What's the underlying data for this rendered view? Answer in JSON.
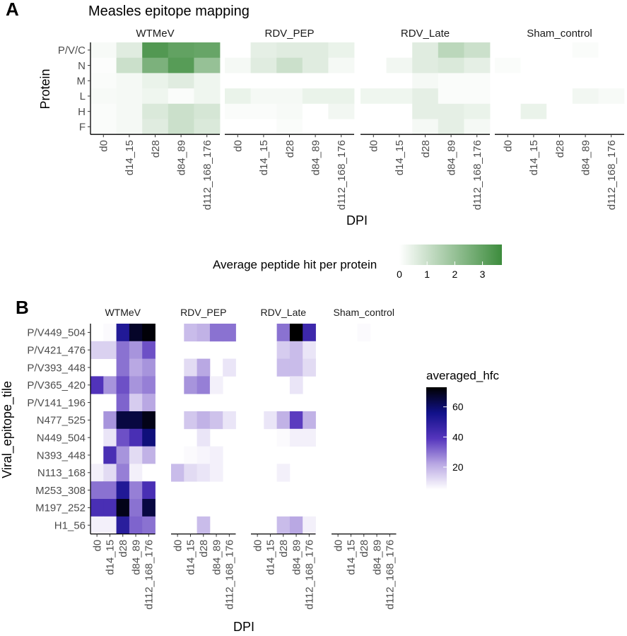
{
  "figure": {
    "panel_a_letter": "A",
    "panel_b_letter": "B"
  },
  "chart_data": [
    {
      "id": "panel_a",
      "type": "heatmap",
      "title": "Measles epitope mapping",
      "xlabel": "DPI",
      "ylabel": "Protein",
      "facets": [
        "WTMeV",
        "RDV_PEP",
        "RDV_Late",
        "Sham_control"
      ],
      "x": [
        "d0",
        "d14_15",
        "d28",
        "d84_89",
        "d112_168_176"
      ],
      "y": [
        "P/V/C",
        "N",
        "M",
        "L",
        "H",
        "F"
      ],
      "legend": {
        "title": "Average peptide hit per protein",
        "position": "bottom",
        "ticks": [
          0,
          1,
          2,
          3
        ],
        "range": [
          0,
          3.7
        ],
        "low_color": "#ffffff",
        "high_color": "#3d8c3d"
      },
      "values": {
        "WTMeV": [
          [
            0.15,
            0.6,
            3.3,
            3.0,
            2.9
          ],
          [
            0.05,
            1.0,
            2.5,
            3.2,
            2.0
          ],
          [
            0.1,
            0.2,
            0.4,
            0.6,
            0.3
          ],
          [
            0.15,
            0.2,
            0.3,
            0.1,
            0.3
          ],
          [
            0.1,
            0.2,
            0.7,
            1.0,
            0.8
          ],
          [
            0.1,
            0.2,
            0.6,
            1.0,
            0.7
          ]
        ],
        "RDV_PEP": [
          [
            0.0,
            0.5,
            0.6,
            0.6,
            0.4
          ],
          [
            0.2,
            0.6,
            1.0,
            0.6,
            0.2
          ],
          [
            0.0,
            0.0,
            0.0,
            0.0,
            0.0
          ],
          [
            0.4,
            0.2,
            0.2,
            0.4,
            0.4
          ],
          [
            0.1,
            0.1,
            0.15,
            0.0,
            0.25
          ],
          [
            0.0,
            0.0,
            0.1,
            0.0,
            0.0
          ]
        ],
        "RDV_Late": [
          [
            0.0,
            0.0,
            0.6,
            1.3,
            1.0
          ],
          [
            0.0,
            0.25,
            0.6,
            0.7,
            0.5
          ],
          [
            0.0,
            0.0,
            0.2,
            0.1,
            0.1
          ],
          [
            0.3,
            0.3,
            0.5,
            0.1,
            0.1
          ],
          [
            0.0,
            0.0,
            0.5,
            0.5,
            0.4
          ],
          [
            0.0,
            0.0,
            0.2,
            0.5,
            0.2
          ]
        ],
        "Sham_control": [
          [
            0.0,
            0.0,
            0.0,
            0.1,
            0.0
          ],
          [
            0.1,
            0.0,
            0.0,
            0.0,
            0.0
          ],
          [
            0.0,
            0.0,
            0.0,
            0.0,
            0.0
          ],
          [
            0.0,
            0.0,
            0.0,
            0.25,
            0.15
          ],
          [
            0.0,
            0.4,
            0.0,
            0.0,
            0.0
          ],
          [
            0.0,
            0.0,
            0.0,
            0.0,
            0.0
          ]
        ]
      }
    },
    {
      "id": "panel_b",
      "type": "heatmap",
      "xlabel": "DPI",
      "ylabel": "Viral_epitope_tile",
      "facets": [
        "WTMeV",
        "RDV_PEP",
        "RDV_Late",
        "Sham_control"
      ],
      "x": [
        "d0",
        "d14_15",
        "d28",
        "d84_89",
        "d112_168_176"
      ],
      "y": [
        "P/V449_504",
        "P/V421_476",
        "P/V393_448",
        "P/V365_420",
        "P/V141_196",
        "N477_525",
        "N449_504",
        "N393_448",
        "N113_168",
        "M253_308",
        "M197_252",
        "H1_56"
      ],
      "legend": {
        "title": "averaged_hfc",
        "position": "right",
        "ticks": [
          20,
          40,
          60
        ],
        "range": [
          5,
          73
        ],
        "colors": [
          "#ffffff",
          "#b9a8e3",
          "#5535bd",
          "#11118a",
          "#000000"
        ]
      },
      "values": {
        "WTMeV": [
          [
            null,
            6,
            52,
            68,
            72
          ],
          [
            14,
            14,
            30,
            25,
            35
          ],
          [
            null,
            null,
            30,
            22,
            25
          ],
          [
            40,
            25,
            35,
            25,
            28
          ],
          [
            null,
            null,
            32,
            15,
            22
          ],
          [
            null,
            25,
            65,
            65,
            70
          ],
          [
            null,
            10,
            35,
            42,
            58
          ],
          [
            null,
            42,
            25,
            12,
            20
          ],
          [
            8,
            12,
            28,
            8,
            5
          ],
          [
            30,
            30,
            52,
            28,
            42
          ],
          [
            42,
            42,
            70,
            30,
            65
          ],
          [
            8,
            8,
            50,
            32,
            30
          ]
        ],
        "RDV_PEP": [
          [
            null,
            18,
            20,
            30,
            30
          ],
          [
            null,
            null,
            null,
            null,
            null
          ],
          [
            null,
            12,
            22,
            null,
            10
          ],
          [
            null,
            25,
            28,
            8,
            null
          ],
          [
            null,
            null,
            null,
            null,
            null
          ],
          [
            null,
            16,
            20,
            17,
            10
          ],
          [
            null,
            null,
            10,
            null,
            null
          ],
          [
            null,
            6,
            7,
            8,
            null
          ],
          [
            18,
            12,
            10,
            8,
            null
          ],
          [
            null,
            null,
            null,
            null,
            null
          ],
          [
            null,
            null,
            null,
            null,
            null
          ],
          [
            null,
            null,
            18,
            null,
            null
          ]
        ],
        "RDV_Late": [
          [
            null,
            null,
            30,
            75,
            45
          ],
          [
            null,
            null,
            15,
            18,
            10
          ],
          [
            null,
            null,
            18,
            18,
            12
          ],
          [
            null,
            null,
            null,
            10,
            null
          ],
          [
            null,
            null,
            null,
            null,
            null
          ],
          [
            null,
            10,
            20,
            38,
            20
          ],
          [
            null,
            null,
            6,
            8,
            8
          ],
          [
            null,
            null,
            null,
            null,
            null
          ],
          [
            null,
            null,
            8,
            null,
            null
          ],
          [
            null,
            null,
            null,
            null,
            null
          ],
          [
            null,
            null,
            null,
            null,
            null
          ],
          [
            null,
            null,
            18,
            22,
            8
          ]
        ],
        "Sham_control": [
          [
            null,
            null,
            6,
            null,
            null
          ],
          [
            null,
            null,
            null,
            null,
            null
          ],
          [
            null,
            null,
            null,
            null,
            null
          ],
          [
            null,
            null,
            null,
            null,
            null
          ],
          [
            null,
            null,
            null,
            null,
            null
          ],
          [
            null,
            null,
            null,
            null,
            null
          ],
          [
            null,
            null,
            null,
            null,
            null
          ],
          [
            null,
            null,
            null,
            null,
            null
          ],
          [
            null,
            null,
            null,
            null,
            null
          ],
          [
            null,
            null,
            null,
            null,
            null
          ],
          [
            null,
            null,
            null,
            null,
            null
          ],
          [
            null,
            null,
            null,
            null,
            null
          ]
        ]
      }
    }
  ]
}
